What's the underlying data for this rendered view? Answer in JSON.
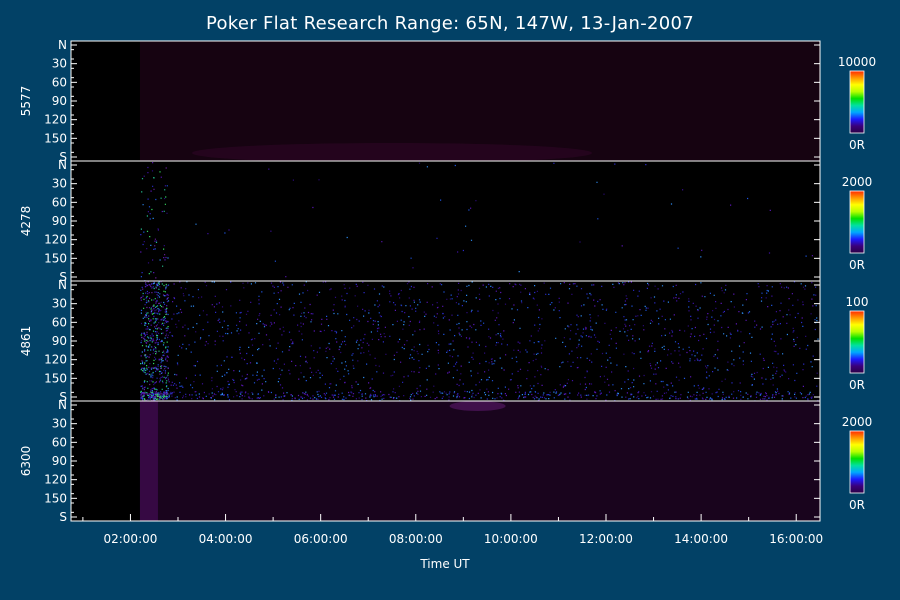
{
  "chart_data": {
    "type": "heatmap",
    "title": "Poker Flat Research Range: 65N, 147W, 13-Jan-2007",
    "xlabel": "Time UT",
    "x_ticks": [
      "02:00:00",
      "04:00:00",
      "06:00:00",
      "08:00:00",
      "10:00:00",
      "12:00:00",
      "14:00:00",
      "16:00:00"
    ],
    "x_range_hours": [
      0.75,
      16.5
    ],
    "data_start_hours": 2.2,
    "y_ticks": [
      "N",
      "30",
      "60",
      "90",
      "120",
      "150",
      "S"
    ],
    "colors": {
      "background": "#024166",
      "panel": "#000000",
      "axis": "#ffffff",
      "colorbar": [
        "#2a0045",
        "#3a007a",
        "#1b1bff",
        "#00a8ff",
        "#00e0a0",
        "#00e000",
        "#b8ff00",
        "#ffff00",
        "#ff9900",
        "#ff2a00"
      ]
    },
    "panels": [
      {
        "name": "5577",
        "cbar_max": "10000",
        "cbar_min": "0R",
        "description": "faint dark magenta emission nearly uniform",
        "intensity": "low",
        "noise": "none"
      },
      {
        "name": "4278",
        "cbar_max": "2000",
        "cbar_min": "0R",
        "description": "near-black, sparse speckles near start",
        "intensity": "very_low",
        "noise": "sparse"
      },
      {
        "name": "4861",
        "cbar_max": "100",
        "cbar_min": "0R",
        "description": "dense purple/blue speckle noise, brighter near start and south edge",
        "intensity": "noise",
        "noise": "dense"
      },
      {
        "name": "6300",
        "cbar_max": "2000",
        "cbar_min": "0R",
        "description": "dim purple glow with brighter onset near 02:10",
        "intensity": "low",
        "noise": "none"
      }
    ]
  }
}
